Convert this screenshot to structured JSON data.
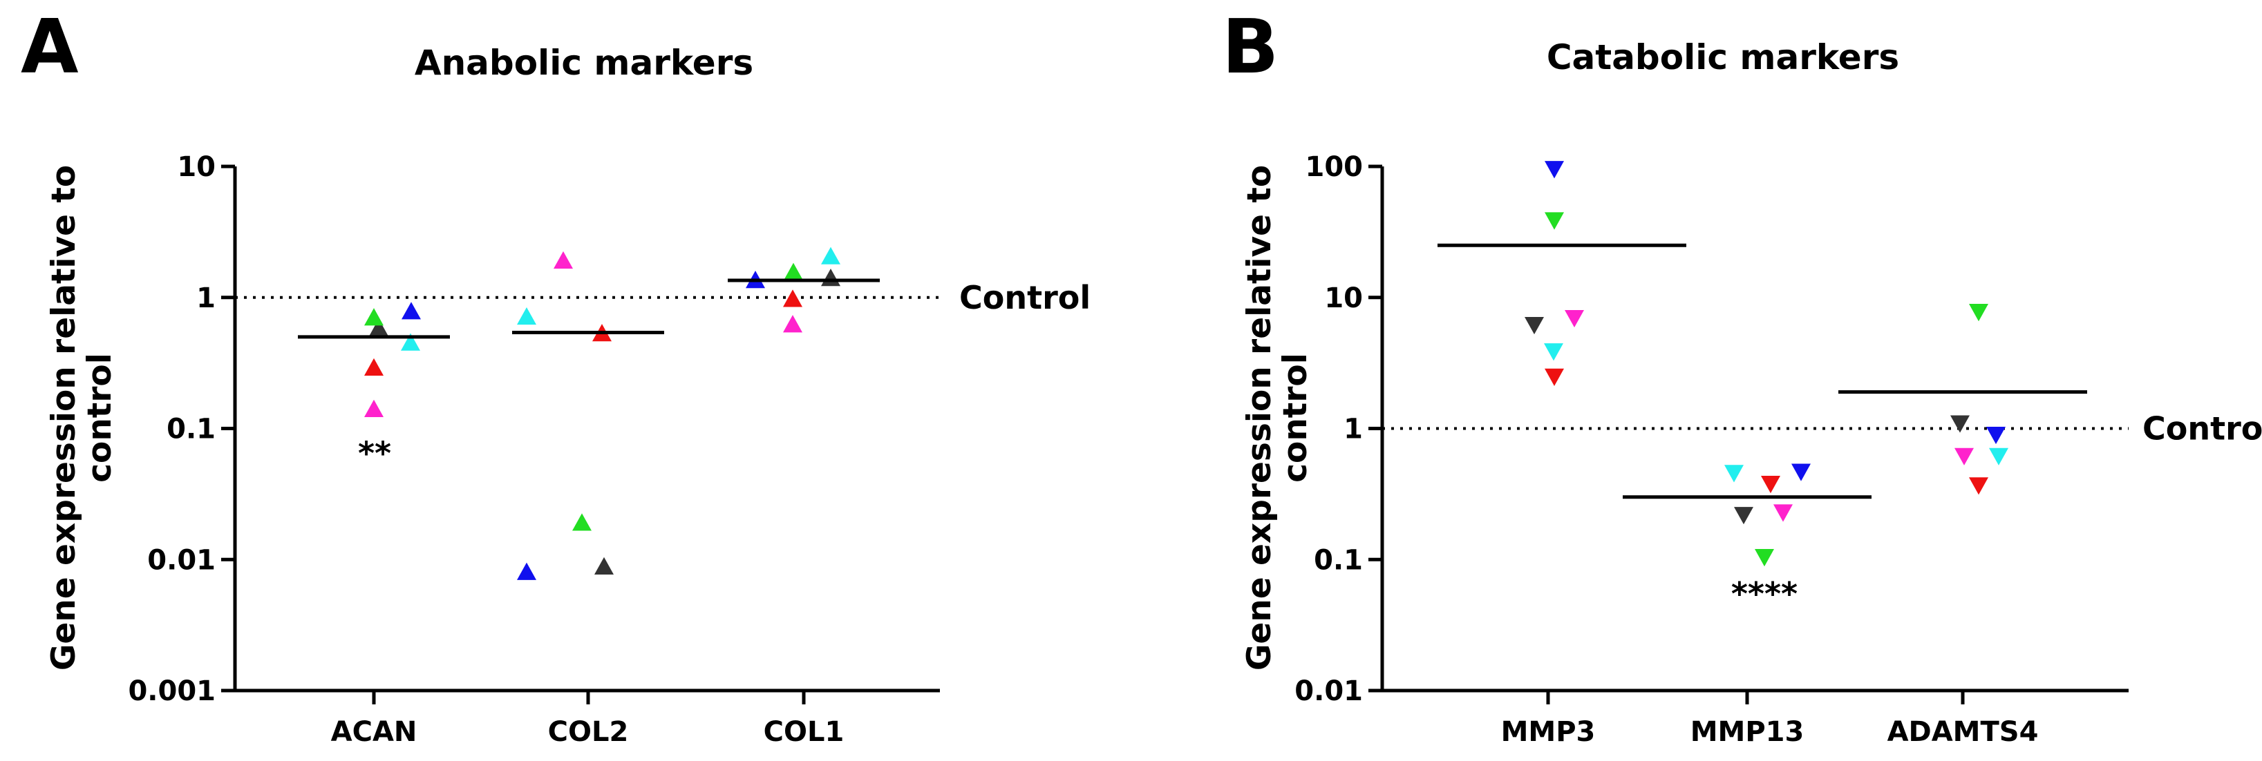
{
  "chart_data": [
    {
      "panel": "A",
      "type": "scatter",
      "title": "Anabolic markers",
      "ylabel": "Gene expression relative to control",
      "ylabel_lines": [
        "Gene expression relative to",
        "control"
      ],
      "xlabel": "",
      "yscale": "log",
      "ylim": [
        0.001,
        10
      ],
      "yticks": [
        0.001,
        0.01,
        0.1,
        1,
        10
      ],
      "ytick_labels": [
        "0.001",
        "0.01",
        "0.1",
        "1",
        "10"
      ],
      "categories": [
        "ACAN",
        "COL2",
        "COL1"
      ],
      "marker": "triangle-up",
      "reference_line": {
        "y": 1,
        "style": "dotted",
        "label": "Control"
      },
      "points": [
        {
          "category": "ACAN",
          "y": 0.58,
          "color": "#333333"
        },
        {
          "category": "ACAN",
          "y": 0.7,
          "color": "#22dd22"
        },
        {
          "category": "ACAN",
          "y": 0.78,
          "color": "#1010ee"
        },
        {
          "category": "ACAN",
          "y": 0.45,
          "color": "#22eeee"
        },
        {
          "category": "ACAN",
          "y": 0.29,
          "color": "#ee1111"
        },
        {
          "category": "ACAN",
          "y": 0.14,
          "color": "#ff22cc"
        },
        {
          "category": "COL2",
          "y": 1.9,
          "color": "#ff22cc"
        },
        {
          "category": "COL2",
          "y": 0.71,
          "color": "#22eeee"
        },
        {
          "category": "COL2",
          "y": 0.53,
          "color": "#ee1111"
        },
        {
          "category": "COL2",
          "y": 0.019,
          "color": "#22dd22"
        },
        {
          "category": "COL2",
          "y": 0.008,
          "color": "#1010ee"
        },
        {
          "category": "COL2",
          "y": 0.0088,
          "color": "#333333"
        },
        {
          "category": "COL1",
          "y": 1.35,
          "color": "#1010ee"
        },
        {
          "category": "COL1",
          "y": 1.55,
          "color": "#22dd22"
        },
        {
          "category": "COL1",
          "y": 2.05,
          "color": "#22eeee"
        },
        {
          "category": "COL1",
          "y": 1.4,
          "color": "#333333"
        },
        {
          "category": "COL1",
          "y": 0.97,
          "color": "#ee1111"
        },
        {
          "category": "COL1",
          "y": 0.62,
          "color": "#ff22cc"
        }
      ],
      "means": [
        {
          "category": "ACAN",
          "y": 0.5
        },
        {
          "category": "COL2",
          "y": 0.54
        },
        {
          "category": "COL1",
          "y": 1.35
        }
      ],
      "annotations": [
        {
          "category": "ACAN",
          "text": "**",
          "y": 0.066
        }
      ]
    },
    {
      "panel": "B",
      "type": "scatter",
      "title": "Catabolic markers",
      "ylabel": "Gene expression relative to control",
      "ylabel_lines": [
        "Gene expression relative to",
        "control"
      ],
      "xlabel": "",
      "yscale": "log",
      "ylim": [
        0.01,
        100
      ],
      "yticks": [
        0.01,
        0.1,
        1,
        10,
        100
      ],
      "ytick_labels": [
        "0.01",
        "0.1",
        "1",
        "10",
        "100"
      ],
      "categories": [
        "MMP3",
        "MMP13",
        "ADAMTS4"
      ],
      "marker": "triangle-down",
      "reference_line": {
        "y": 1,
        "style": "dotted",
        "label": "Control"
      },
      "points": [
        {
          "category": "MMP3",
          "y": 96,
          "color": "#1010ee"
        },
        {
          "category": "MMP3",
          "y": 39,
          "color": "#22dd22"
        },
        {
          "category": "MMP3",
          "y": 6.2,
          "color": "#333333"
        },
        {
          "category": "MMP3",
          "y": 7.0,
          "color": "#ff22cc"
        },
        {
          "category": "MMP3",
          "y": 3.9,
          "color": "#22eeee"
        },
        {
          "category": "MMP3",
          "y": 2.5,
          "color": "#ee1111"
        },
        {
          "category": "MMP13",
          "y": 0.46,
          "color": "#22eeee"
        },
        {
          "category": "MMP13",
          "y": 0.38,
          "color": "#ee1111"
        },
        {
          "category": "MMP13",
          "y": 0.47,
          "color": "#1010ee"
        },
        {
          "category": "MMP13",
          "y": 0.22,
          "color": "#333333"
        },
        {
          "category": "MMP13",
          "y": 0.23,
          "color": "#ff22cc"
        },
        {
          "category": "MMP13",
          "y": 0.105,
          "color": "#22dd22"
        },
        {
          "category": "ADAMTS4",
          "y": 7.8,
          "color": "#22dd22"
        },
        {
          "category": "ADAMTS4",
          "y": 1.1,
          "color": "#333333"
        },
        {
          "category": "ADAMTS4",
          "y": 0.9,
          "color": "#1010ee"
        },
        {
          "category": "ADAMTS4",
          "y": 0.62,
          "color": "#ff22cc"
        },
        {
          "category": "ADAMTS4",
          "y": 0.62,
          "color": "#22eeee"
        },
        {
          "category": "ADAMTS4",
          "y": 0.37,
          "color": "#ee1111"
        }
      ],
      "means": [
        {
          "category": "MMP3",
          "y": 25
        },
        {
          "category": "MMP13",
          "y": 0.3
        },
        {
          "category": "ADAMTS4",
          "y": 1.9
        }
      ],
      "annotations": [
        {
          "category": "MMP13",
          "text": "****",
          "y": 0.056
        }
      ]
    }
  ]
}
